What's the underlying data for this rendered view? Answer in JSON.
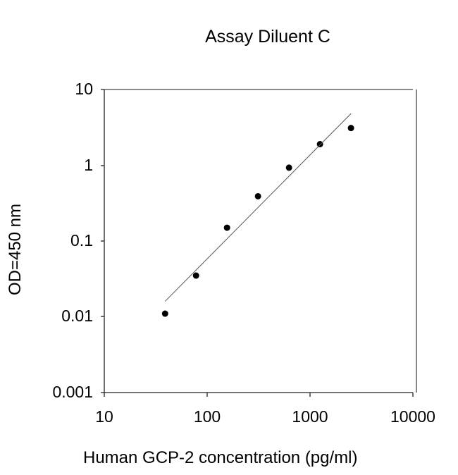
{
  "chart_data": {
    "type": "scatter",
    "title": "Assay Diluent C",
    "xlabel": "Human GCP-2 concentration (pg/ml)",
    "ylabel": "OD=450 nm",
    "xscale": "log",
    "yscale": "log",
    "xlim": [
      10,
      10000
    ],
    "ylim": [
      0.001,
      10
    ],
    "x_ticks": [
      "10",
      "100",
      "1000",
      "10000"
    ],
    "y_ticks": [
      "10",
      "1",
      "0.1",
      "0.01",
      "0.001"
    ],
    "grid": false,
    "legend": null,
    "series": [
      {
        "name": "data",
        "x": [
          39,
          78,
          156,
          312,
          625,
          1250,
          2500
        ],
        "y": [
          0.011,
          0.035,
          0.15,
          0.39,
          0.93,
          1.9,
          3.1
        ]
      },
      {
        "name": "fit",
        "type": "line",
        "x": [
          39,
          2500
        ],
        "y": [
          0.016,
          4.8
        ]
      }
    ]
  }
}
